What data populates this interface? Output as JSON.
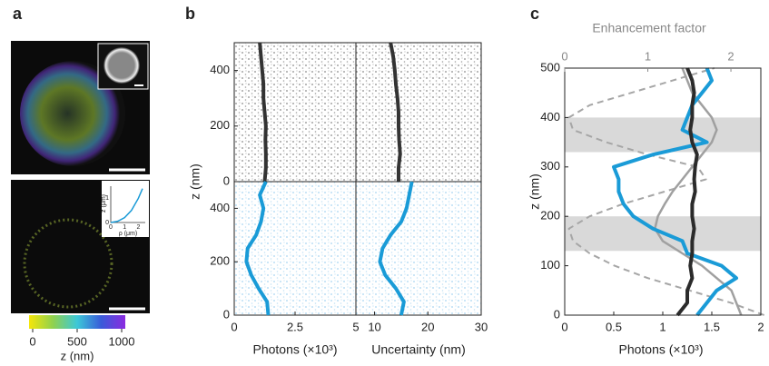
{
  "chart_data": [
    {
      "type": "image",
      "panel": "a",
      "colormap": [
        "#f5e60a",
        "#8fd14f",
        "#3cc8d8",
        "#3a5bd9",
        "#8b2be0"
      ],
      "colorbar_ticks": [
        0,
        500,
        1000
      ],
      "colorbar_label": "z (nm)",
      "inset": {
        "type": "line",
        "xlabel": "ρ (μm)",
        "ylabel": "z (μm)",
        "x": [
          0,
          0.5,
          1,
          1.5,
          2,
          2.3
        ],
        "y": [
          0,
          0.05,
          0.2,
          0.5,
          1.0,
          1.4
        ],
        "xlim": [
          0,
          2.5
        ],
        "ylim": [
          0,
          1.5
        ],
        "xticks": [
          0,
          1,
          2
        ],
        "yticks": [
          0,
          1
        ],
        "color": "#1a9bd7"
      }
    },
    {
      "type": "line",
      "panel": "b",
      "ylabel": "z (nm)",
      "color": "#333333",
      "scatter_color": "#444444",
      "y": [
        0,
        50,
        100,
        150,
        200,
        250,
        300,
        350,
        400,
        450,
        500
      ],
      "values": [
        1.25,
        1.3,
        1.3,
        1.28,
        1.3,
        1.25,
        1.2,
        1.2,
        1.15,
        1.1,
        1.05
      ],
      "xlim": [
        0,
        5
      ],
      "ylim": [
        0,
        500
      ],
      "yticks": [
        0,
        200,
        400
      ]
    },
    {
      "type": "line",
      "xlabel": "Photons (×10³)",
      "color": "#1a9bd7",
      "scatter_color": "#1a9bd7",
      "y": [
        0,
        50,
        100,
        150,
        200,
        250,
        300,
        350,
        400,
        450,
        500
      ],
      "values": [
        1.4,
        1.35,
        1.0,
        0.7,
        0.5,
        0.55,
        0.9,
        1.1,
        1.2,
        1.05,
        1.3
      ],
      "xlim": [
        0,
        5
      ],
      "ylim": [
        0,
        500
      ],
      "xticks": [
        0,
        2.5,
        5
      ],
      "yticks": [
        0,
        200,
        400
      ]
    },
    {
      "type": "line",
      "color": "#333333",
      "scatter_color": "#444444",
      "y": [
        0,
        50,
        100,
        150,
        200,
        250,
        300,
        350,
        400,
        450,
        500
      ],
      "values": [
        14.5,
        14.5,
        14.8,
        14.6,
        14.5,
        14.5,
        14.3,
        14,
        13.8,
        13.5,
        13
      ],
      "xlim": [
        6.5,
        30
      ],
      "ylim": [
        0,
        500
      ]
    },
    {
      "type": "line",
      "xlabel": "Uncertainty (nm)",
      "color": "#1a9bd7",
      "scatter_color": "#1a9bd7",
      "y": [
        0,
        50,
        100,
        150,
        200,
        250,
        300,
        350,
        400,
        450,
        500
      ],
      "values": [
        15,
        15.5,
        14,
        12,
        11,
        11.5,
        13,
        15,
        16,
        16.5,
        17
      ],
      "xlim": [
        6.5,
        30
      ],
      "ylim": [
        0,
        500
      ],
      "xticks": [
        10,
        20,
        30
      ]
    },
    {
      "type": "line",
      "panel": "c",
      "xlabel": "Photons (×10³)",
      "ylabel": "z (nm)",
      "x2label": "Enhancement factor",
      "xlim": [
        0,
        2
      ],
      "xticks": [
        0,
        0.5,
        1,
        1.5,
        2
      ],
      "x2lim": [
        0,
        2.36
      ],
      "x2ticks": [
        0,
        1,
        2
      ],
      "ylim": [
        0,
        500
      ],
      "yticks": [
        0,
        100,
        200,
        300,
        400,
        500
      ],
      "bands": [
        [
          130,
          200
        ],
        [
          330,
          400
        ]
      ],
      "band_color": "#d9d9d9",
      "y": [
        0,
        25,
        50,
        75,
        100,
        125,
        150,
        175,
        200,
        225,
        250,
        275,
        300,
        325,
        350,
        375,
        400,
        425,
        450,
        475,
        500
      ],
      "series": [
        {
          "color": "#a6a6a6",
          "dashed": true,
          "axis": "x2",
          "values": [
            2.4,
            2.0,
            1.5,
            1.0,
            0.6,
            0.3,
            0.1,
            0.05,
            0.3,
            0.7,
            1.2,
            1.7,
            1.6,
            1.0,
            0.5,
            0.1,
            0.05,
            0.3,
            0.8,
            1.3,
            1.8
          ]
        },
        {
          "color": "#a0a0a0",
          "values": [
            1.8,
            1.75,
            1.7,
            1.55,
            1.4,
            1.2,
            1.0,
            0.92,
            0.95,
            1.02,
            1.1,
            1.2,
            1.3,
            1.4,
            1.5,
            1.55,
            1.5,
            1.4,
            1.3,
            1.25,
            1.2
          ]
        },
        {
          "color": "#1a9bd7",
          "values": [
            1.35,
            1.45,
            1.55,
            1.75,
            1.6,
            1.25,
            1.2,
            0.9,
            0.7,
            0.6,
            0.55,
            0.55,
            0.5,
            0.9,
            1.45,
            1.2,
            1.25,
            1.3,
            1.4,
            1.5,
            1.45
          ]
        },
        {
          "color": "#2b2b2b",
          "values": [
            1.15,
            1.25,
            1.25,
            1.3,
            1.28,
            1.3,
            1.3,
            1.32,
            1.3,
            1.3,
            1.33,
            1.32,
            1.33,
            1.35,
            1.3,
            1.28,
            1.3,
            1.3,
            1.32,
            1.3,
            1.25
          ]
        }
      ]
    }
  ]
}
